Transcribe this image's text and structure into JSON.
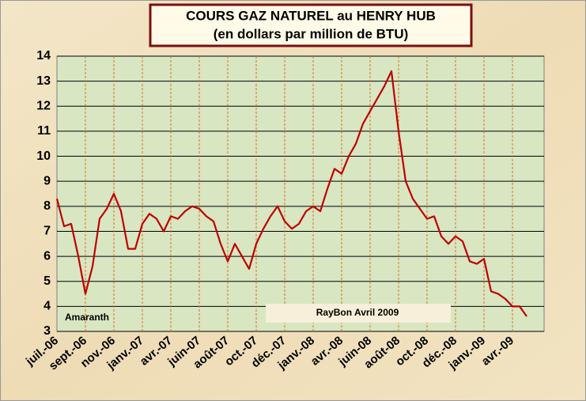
{
  "chart_data": {
    "type": "line",
    "title": "COURS GAZ NATUREL au HENRY HUB",
    "subtitle": "(en dollars par million de BTU)",
    "annotations": [
      "Amaranth",
      "RayBon  Avril 2009"
    ],
    "categories": [
      "juil.-06",
      null,
      null,
      null,
      "sept.-06",
      null,
      null,
      null,
      "nov.-06",
      null,
      null,
      null,
      "janv.-07",
      null,
      null,
      null,
      "avr.-07",
      null,
      null,
      null,
      "juin-07",
      null,
      null,
      null,
      "août-07",
      null,
      null,
      null,
      "oct.-07",
      null,
      null,
      null,
      "déc.-07",
      null,
      null,
      null,
      "janv.-08",
      null,
      null,
      null,
      "avr.-08",
      null,
      null,
      null,
      "juin-08",
      null,
      null,
      null,
      "août-08",
      null,
      null,
      null,
      "oct.-08",
      null,
      null,
      null,
      "déc.-08",
      null,
      null,
      null,
      "janv.-09",
      null,
      null,
      null,
      "avr.-09",
      null,
      null
    ],
    "series": [
      {
        "name": "Henry Hub",
        "color": "#c00000",
        "values": [
          8.3,
          7.2,
          7.3,
          6.0,
          4.5,
          5.6,
          7.5,
          7.9,
          8.5,
          7.8,
          6.3,
          6.3,
          7.3,
          7.7,
          7.5,
          7.0,
          7.6,
          7.5,
          7.8,
          8.0,
          7.9,
          7.6,
          7.4,
          6.5,
          5.8,
          6.5,
          6.0,
          5.5,
          6.5,
          7.1,
          7.6,
          8.0,
          7.4,
          7.1,
          7.3,
          7.8,
          8.0,
          7.8,
          8.7,
          9.5,
          9.3,
          10.0,
          10.5,
          11.3,
          11.8,
          12.3,
          12.8,
          13.4,
          11.0,
          9.0,
          8.3,
          7.9,
          7.5,
          7.6,
          6.8,
          6.5,
          6.8,
          6.6,
          5.8,
          5.7,
          5.9,
          4.6,
          4.5,
          4.3,
          4.0,
          4.0,
          3.6
        ]
      }
    ],
    "ylim": [
      3,
      14
    ],
    "yticks": [
      3,
      4,
      5,
      6,
      7,
      8,
      9,
      10,
      11,
      12,
      13,
      14
    ],
    "grid": true
  }
}
